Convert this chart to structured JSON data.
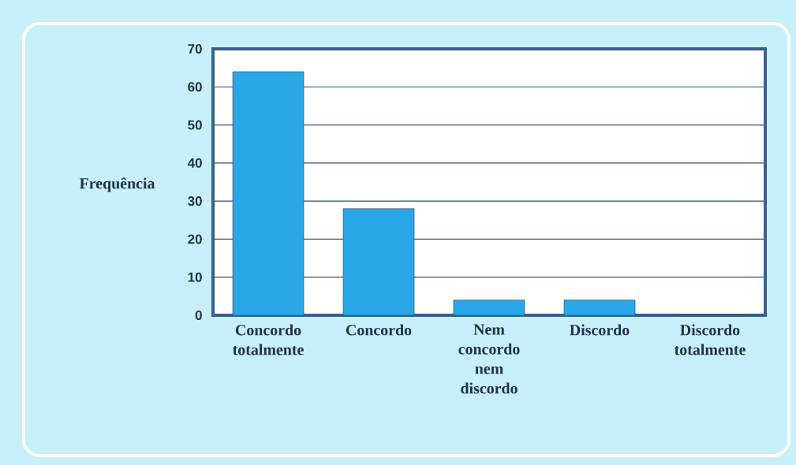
{
  "chart_data": {
    "type": "bar",
    "ylabel": "Frequência",
    "categories": [
      "Concordo totalmente",
      "Concordo",
      "Nem concordo nem discordo",
      "Discordo",
      "Discordo totalmente"
    ],
    "values": [
      64,
      28,
      4,
      4,
      0
    ],
    "color": "#2aa7e6",
    "ylim": [
      0,
      70
    ],
    "yticks": [
      0,
      10,
      20,
      30,
      40,
      50,
      60,
      70
    ],
    "grid": "y"
  }
}
